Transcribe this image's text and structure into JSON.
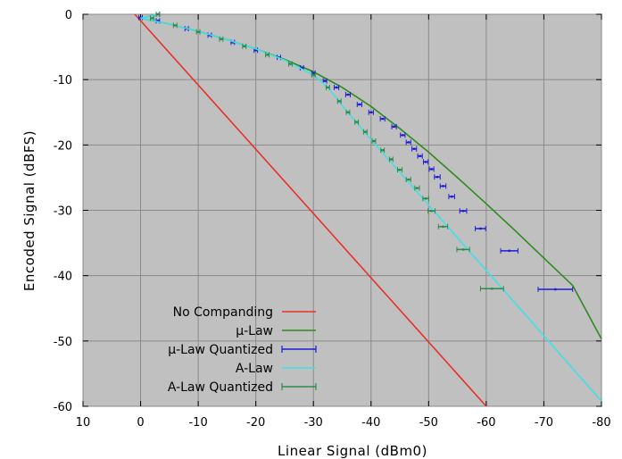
{
  "chart_data": {
    "type": "line",
    "xlabel": "Linear  Signal (dBm0)",
    "ylabel": "Encoded Signal (dBFS)",
    "xlim": [
      10,
      -80
    ],
    "ylim": [
      -60,
      0
    ],
    "x_ticks": [
      10,
      0,
      -10,
      -20,
      -30,
      -40,
      -50,
      -60,
      -70,
      -80
    ],
    "y_ticks": [
      0,
      -10,
      -20,
      -30,
      -40,
      -50,
      -60
    ],
    "x_tick_labels": [
      "10",
      "0",
      "-10",
      "-20",
      "-30",
      "-40",
      "-50",
      "-60",
      "-70",
      "-80"
    ],
    "y_tick_labels": [
      "0",
      "-10",
      "-20",
      "-30",
      "-40",
      "-50",
      "-60"
    ],
    "grid": true,
    "legend_position": "bottom-left",
    "colors": {
      "plot_background": "#c0c0c0",
      "no_companding": "#e8302a",
      "mu_law": "#2e8b1f",
      "mu_law_quantized": "#1c1cd6",
      "a_law": "#3fe0e8",
      "a_law_quantized": "#2f8a4a"
    },
    "series": [
      {
        "name": "No Companding",
        "kind": "line",
        "color": "#e8302a",
        "x": [
          1,
          -60
        ],
        "y": [
          0,
          -60
        ]
      },
      {
        "name": "μ-Law",
        "kind": "line",
        "color": "#2e8b1f",
        "x": [
          -3,
          0,
          -5,
          -10,
          -15,
          -20,
          -25,
          -30,
          -35,
          -40,
          -45,
          -50,
          -55,
          -60,
          -65,
          -70,
          -75,
          -80
        ],
        "y": [
          0,
          -0.6,
          -1.5,
          -2.6,
          -3.9,
          -5.3,
          -6.9,
          -8.8,
          -11.2,
          -14.1,
          -17.5,
          -21.1,
          -25.0,
          -29.0,
          -33.1,
          -37.3,
          -41.5,
          -49.7
        ]
      },
      {
        "name": "μ-Law Quantized",
        "kind": "points_with_xerror",
        "color": "#1c1cd6",
        "points": [
          {
            "x": -3,
            "y": 0,
            "xerr": 0.3
          },
          {
            "x": 0,
            "y": -0.5,
            "xerr": 0.3
          },
          {
            "x": -3,
            "y": -1,
            "xerr": 0.3
          },
          {
            "x": -8,
            "y": -2.2,
            "xerr": 0.3
          },
          {
            "x": -12,
            "y": -3.2,
            "xerr": 0.3
          },
          {
            "x": -16,
            "y": -4.3,
            "xerr": 0.3
          },
          {
            "x": -20,
            "y": -5.5,
            "xerr": 0.3
          },
          {
            "x": -24,
            "y": -6.6,
            "xerr": 0.3
          },
          {
            "x": -28,
            "y": -8.2,
            "xerr": 0.3
          },
          {
            "x": -30,
            "y": -9,
            "xerr": 0.3
          },
          {
            "x": -32,
            "y": -10.2,
            "xerr": 0.3
          },
          {
            "x": -34,
            "y": -11.2,
            "xerr": 0.4
          },
          {
            "x": -36,
            "y": -12.3,
            "xerr": 0.4
          },
          {
            "x": -38,
            "y": -13.8,
            "xerr": 0.4
          },
          {
            "x": -40,
            "y": -15,
            "xerr": 0.4
          },
          {
            "x": -42,
            "y": -16,
            "xerr": 0.4
          },
          {
            "x": -44,
            "y": -17.2,
            "xerr": 0.4
          },
          {
            "x": -45.5,
            "y": -18.5,
            "xerr": 0.4
          },
          {
            "x": -46.5,
            "y": -19.6,
            "xerr": 0.4
          },
          {
            "x": -47.5,
            "y": -20.6,
            "xerr": 0.4
          },
          {
            "x": -48.5,
            "y": -21.7,
            "xerr": 0.4
          },
          {
            "x": -49.5,
            "y": -22.6,
            "xerr": 0.4
          },
          {
            "x": -50.5,
            "y": -23.7,
            "xerr": 0.4
          },
          {
            "x": -51.5,
            "y": -24.9,
            "xerr": 0.5
          },
          {
            "x": -52.5,
            "y": -26.3,
            "xerr": 0.5
          },
          {
            "x": -54,
            "y": -27.9,
            "xerr": 0.5
          },
          {
            "x": -56,
            "y": -30.1,
            "xerr": 0.6
          },
          {
            "x": -59,
            "y": -32.8,
            "xerr": 0.9
          },
          {
            "x": -64,
            "y": -36.2,
            "xerr": 1.5
          },
          {
            "x": -72,
            "y": -42.1,
            "xerr": 3
          }
        ]
      },
      {
        "name": "A-Law",
        "kind": "line",
        "color": "#3fe0e8",
        "x": [
          -3,
          0,
          -5,
          -10,
          -15,
          -20,
          -25,
          -30,
          -32.5,
          -35,
          -40,
          -45,
          -50,
          -55,
          -60,
          -65,
          -70,
          -75,
          -80
        ],
        "y": [
          0,
          -0.6,
          -1.5,
          -2.6,
          -3.9,
          -5.3,
          -7.0,
          -9.3,
          -11.2,
          -14.0,
          -19.2,
          -24.2,
          -29.2,
          -34.2,
          -39.2,
          -44.2,
          -49.2,
          -54.2,
          -59.2
        ]
      },
      {
        "name": "A-Law Quantized",
        "kind": "points_with_xerror",
        "color": "#2f8a4a",
        "points": [
          {
            "x": -3,
            "y": 0,
            "xerr": 0.3
          },
          {
            "x": -2,
            "y": -0.6,
            "xerr": 0.3
          },
          {
            "x": -6,
            "y": -1.7,
            "xerr": 0.3
          },
          {
            "x": -10,
            "y": -2.7,
            "xerr": 0.3
          },
          {
            "x": -14,
            "y": -3.8,
            "xerr": 0.3
          },
          {
            "x": -18,
            "y": -4.9,
            "xerr": 0.3
          },
          {
            "x": -22,
            "y": -6.2,
            "xerr": 0.3
          },
          {
            "x": -26,
            "y": -7.6,
            "xerr": 0.3
          },
          {
            "x": -30,
            "y": -9.3,
            "xerr": 0.3
          },
          {
            "x": -32.5,
            "y": -11.2,
            "xerr": 0.3
          },
          {
            "x": -34.5,
            "y": -13.3,
            "xerr": 0.3
          },
          {
            "x": -36,
            "y": -15,
            "xerr": 0.3
          },
          {
            "x": -37.5,
            "y": -16.5,
            "xerr": 0.3
          },
          {
            "x": -39,
            "y": -18,
            "xerr": 0.3
          },
          {
            "x": -40.5,
            "y": -19.4,
            "xerr": 0.3
          },
          {
            "x": -42,
            "y": -20.8,
            "xerr": 0.3
          },
          {
            "x": -43.5,
            "y": -22.2,
            "xerr": 0.3
          },
          {
            "x": -45,
            "y": -23.8,
            "xerr": 0.4
          },
          {
            "x": -46.5,
            "y": -25.3,
            "xerr": 0.4
          },
          {
            "x": -48,
            "y": -26.6,
            "xerr": 0.4
          },
          {
            "x": -49.5,
            "y": -28.2,
            "xerr": 0.5
          },
          {
            "x": -50.5,
            "y": -30.1,
            "xerr": 0.6
          },
          {
            "x": -52.5,
            "y": -32.5,
            "xerr": 0.8
          },
          {
            "x": -56,
            "y": -36,
            "xerr": 1.1
          },
          {
            "x": -61,
            "y": -42,
            "xerr": 2
          }
        ]
      }
    ]
  }
}
